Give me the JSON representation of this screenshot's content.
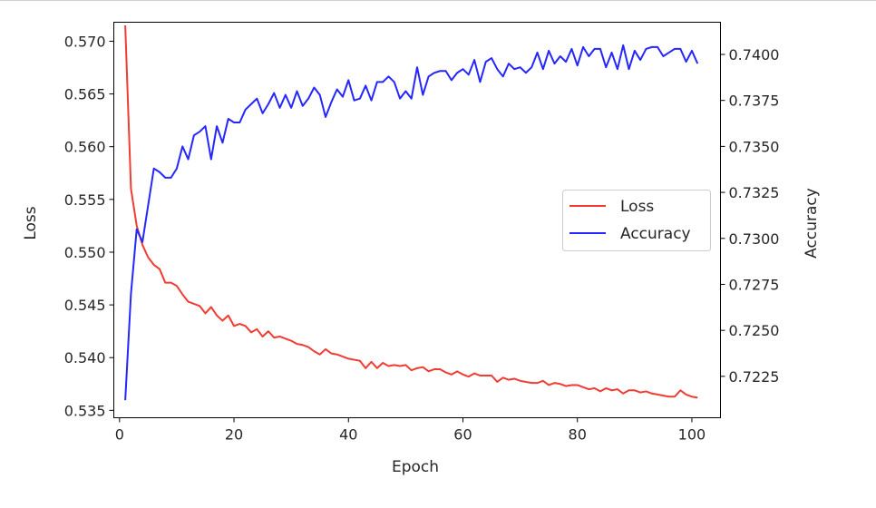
{
  "chart_data": {
    "type": "line",
    "title": "",
    "xlabel": "Epoch",
    "ylabel_left": "Loss",
    "ylabel_right": "Accuracy",
    "xlim": [
      -1,
      105
    ],
    "ylim_left": [
      0.5343,
      0.5718
    ],
    "ylim_right": [
      0.72025,
      0.74175
    ],
    "x_ticks": [
      0,
      20,
      40,
      60,
      80,
      100
    ],
    "y_ticks_left": [
      0.535,
      0.54,
      0.545,
      0.55,
      0.555,
      0.56,
      0.565,
      0.57
    ],
    "y_ticks_right": [
      0.7225,
      0.725,
      0.7275,
      0.73,
      0.7325,
      0.735,
      0.7375,
      0.74
    ],
    "grid": false,
    "legend_position": "center-right",
    "colors": {
      "loss": "#f03c32",
      "accuracy": "#2626ff",
      "axis": "#000000",
      "text": "#262626"
    },
    "series": [
      {
        "name": "Loss",
        "axis": "left",
        "color": "#f03c32",
        "x_start": 1,
        "x_step": 1,
        "values": [
          0.5715,
          0.556,
          0.5525,
          0.5507,
          0.5495,
          0.5488,
          0.5484,
          0.5471,
          0.5471,
          0.5468,
          0.546,
          0.5453,
          0.5451,
          0.5449,
          0.5442,
          0.5448,
          0.544,
          0.5435,
          0.544,
          0.543,
          0.5432,
          0.543,
          0.5424,
          0.5427,
          0.542,
          0.5425,
          0.5419,
          0.542,
          0.5418,
          0.5416,
          0.5413,
          0.5412,
          0.541,
          0.5406,
          0.5403,
          0.5408,
          0.5404,
          0.5403,
          0.5401,
          0.5399,
          0.5398,
          0.5397,
          0.539,
          0.5396,
          0.539,
          0.5395,
          0.5392,
          0.5393,
          0.5392,
          0.5393,
          0.5388,
          0.539,
          0.5391,
          0.5387,
          0.5389,
          0.5389,
          0.5386,
          0.5384,
          0.5387,
          0.5384,
          0.5382,
          0.5385,
          0.5383,
          0.5383,
          0.5383,
          0.5377,
          0.5381,
          0.5379,
          0.538,
          0.5378,
          0.5377,
          0.5376,
          0.5376,
          0.5378,
          0.5374,
          0.5376,
          0.5375,
          0.5373,
          0.5374,
          0.5374,
          0.5372,
          0.537,
          0.5371,
          0.5368,
          0.5371,
          0.5369,
          0.537,
          0.5366,
          0.5369,
          0.5369,
          0.5367,
          0.5368,
          0.5366,
          0.5365,
          0.5364,
          0.5363,
          0.5363,
          0.5369,
          0.5365,
          0.5363,
          0.5362
        ]
      },
      {
        "name": "Accuracy",
        "axis": "right",
        "color": "#2626ff",
        "x_start": 1,
        "x_step": 1,
        "values": [
          0.7212,
          0.727,
          0.7305,
          0.7298,
          0.7318,
          0.7338,
          0.7336,
          0.7333,
          0.7333,
          0.7338,
          0.735,
          0.7343,
          0.7356,
          0.7358,
          0.7361,
          0.7343,
          0.7361,
          0.7352,
          0.7365,
          0.7363,
          0.7363,
          0.737,
          0.7373,
          0.7376,
          0.7368,
          0.7373,
          0.7379,
          0.7371,
          0.7378,
          0.7371,
          0.738,
          0.7372,
          0.7376,
          0.7382,
          0.7378,
          0.7366,
          0.7374,
          0.7381,
          0.7377,
          0.7386,
          0.7375,
          0.7376,
          0.7383,
          0.7375,
          0.7385,
          0.7385,
          0.7388,
          0.7385,
          0.7376,
          0.738,
          0.7376,
          0.7393,
          0.7378,
          0.7388,
          0.739,
          0.7391,
          0.7391,
          0.7386,
          0.739,
          0.7392,
          0.7389,
          0.7397,
          0.7385,
          0.7396,
          0.7398,
          0.7392,
          0.7388,
          0.7395,
          0.7392,
          0.7393,
          0.739,
          0.7393,
          0.7401,
          0.7392,
          0.7402,
          0.7395,
          0.7399,
          0.7396,
          0.7403,
          0.7394,
          0.7404,
          0.7399,
          0.7403,
          0.7403,
          0.7393,
          0.7401,
          0.7392,
          0.7405,
          0.7392,
          0.7402,
          0.7397,
          0.7403,
          0.7404,
          0.7404,
          0.7399,
          0.7401,
          0.7403,
          0.7403,
          0.7396,
          0.7402,
          0.7395
        ]
      }
    ]
  }
}
